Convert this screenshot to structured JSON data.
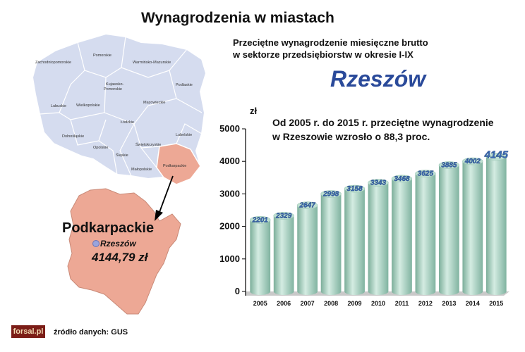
{
  "header": {
    "title": "Wynagrodzenia w miastach",
    "subtitle_line1": "Przeciętne wynagrodzenie miesięczne brutto",
    "subtitle_line2": "w sektorze przedsiębiorstw w okresie I-IX",
    "city": "Rzeszów"
  },
  "annotation": {
    "line1": "Od 2005 r. do 2015 r. przeciętne wynagrodzenie",
    "line2": "w Rzeszowie wzrosło o 88,3 proc."
  },
  "map": {
    "voivodeships": [
      "Pomorskie",
      "Warmińsko-Mazurskie",
      "Zachodniopomorskie",
      "Podlaskie",
      "Kujawsko-",
      "Pomorskie",
      "Lubuskie",
      "Wielkopolskie",
      "Mazowieckie",
      "Łódzkie",
      "Lubelskie",
      "Dolnośląskie",
      "Świętokrzyskie",
      "Opolskie",
      "Śląskie",
      "Podkarpackie",
      "Małopolskie"
    ],
    "highlight_color": "#eda895",
    "region_title": "Podkarpackie",
    "region_city": "Rzeszów",
    "region_value": "4144,79 zł"
  },
  "chart_data": {
    "type": "bar",
    "title": "",
    "ylabel": "zł",
    "xlabel": "",
    "categories": [
      "2005",
      "2006",
      "2007",
      "2008",
      "2009",
      "2010",
      "2011",
      "2012",
      "2013",
      "2014",
      "2015"
    ],
    "values": [
      2201,
      2329,
      2647,
      2998,
      3158,
      3343,
      3468,
      3625,
      3885,
      4002,
      4145
    ],
    "ylim": [
      0,
      5000
    ],
    "yticks": [
      "0",
      "1000",
      "2000",
      "3000",
      "4000",
      "5000"
    ],
    "bar_color": "#a9d2c0",
    "grid": false
  },
  "footer": {
    "logo": "forsal.pl",
    "source": "źródło danych: GUS"
  }
}
